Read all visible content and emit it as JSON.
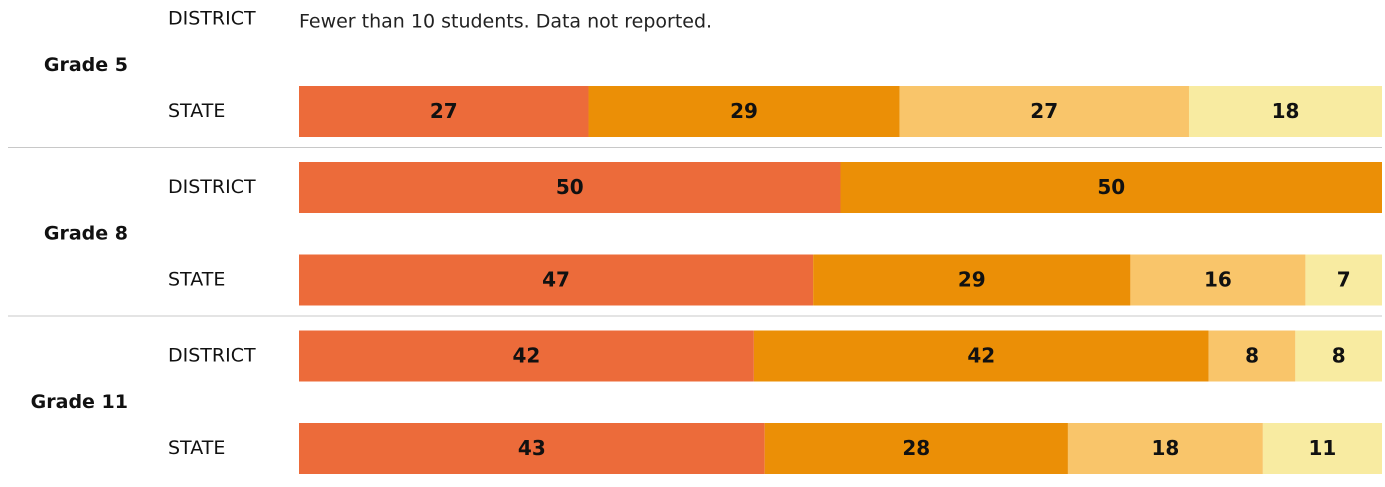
{
  "chart_data": {
    "type": "stacked-bar",
    "colors": [
      "#ec6b3a",
      "#eb8f06",
      "#f9c56a",
      "#f8eba1"
    ],
    "groups": [
      {
        "label": "Grade 5",
        "rows": [
          {
            "label": "DISTRICT",
            "note": "Fewer than 10 students. Data not reported."
          },
          {
            "label": "STATE",
            "values": [
              27,
              29,
              27,
              18
            ]
          }
        ]
      },
      {
        "label": "Grade 8",
        "rows": [
          {
            "label": "DISTRICT",
            "values": [
              50,
              50
            ]
          },
          {
            "label": "STATE",
            "values": [
              47,
              29,
              16,
              7
            ]
          }
        ]
      },
      {
        "label": "Grade 11",
        "rows": [
          {
            "label": "DISTRICT",
            "values": [
              42,
              42,
              8,
              8
            ]
          },
          {
            "label": "STATE",
            "values": [
              43,
              28,
              18,
              11
            ]
          }
        ]
      }
    ]
  }
}
